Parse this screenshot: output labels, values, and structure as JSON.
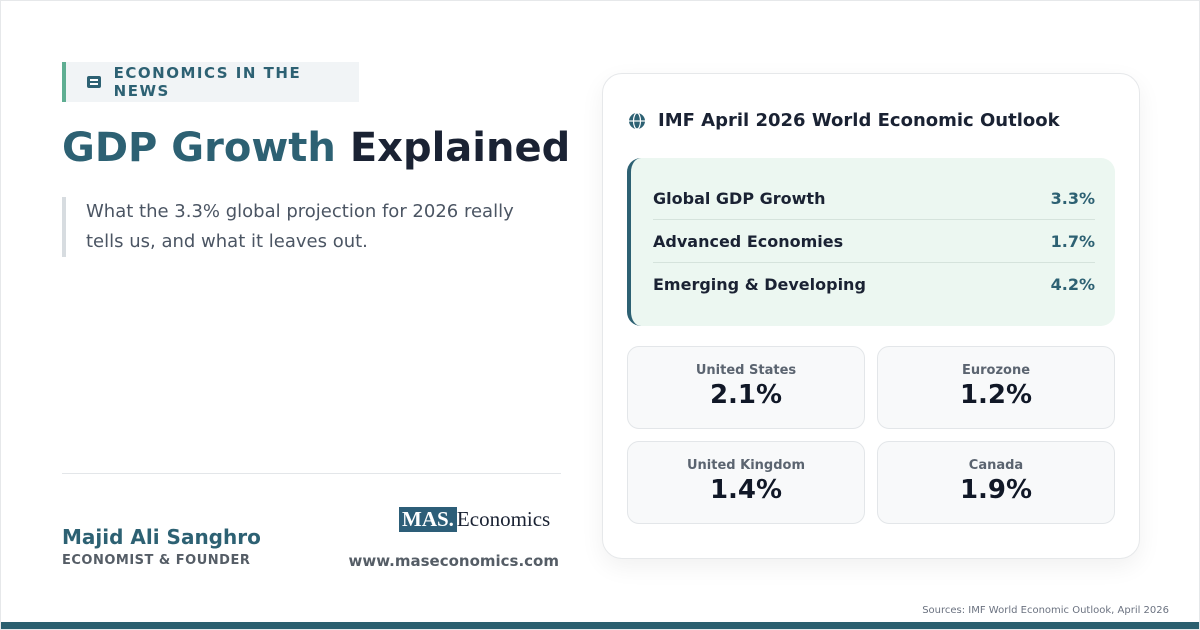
{
  "tag": "ECONOMICS IN THE NEWS",
  "header": {
    "title_highlight": "GDP Growth",
    "title_rest": "Explained",
    "subtitle": "What the 3.3% global projection for 2026 really tells us, and what it leaves out."
  },
  "author": {
    "name": "Majid Ali Sanghro",
    "role": "ECONOMIST & FOUNDER"
  },
  "brand": {
    "logo_mark": "MAS.",
    "logo_text": "Economics",
    "website": "www.maseconomics.com"
  },
  "card": {
    "title": "IMF April 2026 World Economic Outlook",
    "rows": [
      {
        "label": "Global GDP Growth",
        "value": "3.3%"
      },
      {
        "label": "Advanced Economies",
        "value": "1.7%"
      },
      {
        "label": "Emerging & Developing",
        "value": "4.2%"
      }
    ],
    "tiles": [
      {
        "label": "United States",
        "value": "2.1%"
      },
      {
        "label": "Eurozone",
        "value": "1.2%"
      },
      {
        "label": "United Kingdom",
        "value": "1.4%"
      },
      {
        "label": "Canada",
        "value": "1.9%"
      }
    ]
  },
  "footer": {
    "source": "Sources: IMF World Economic Outlook, April 2026"
  }
}
